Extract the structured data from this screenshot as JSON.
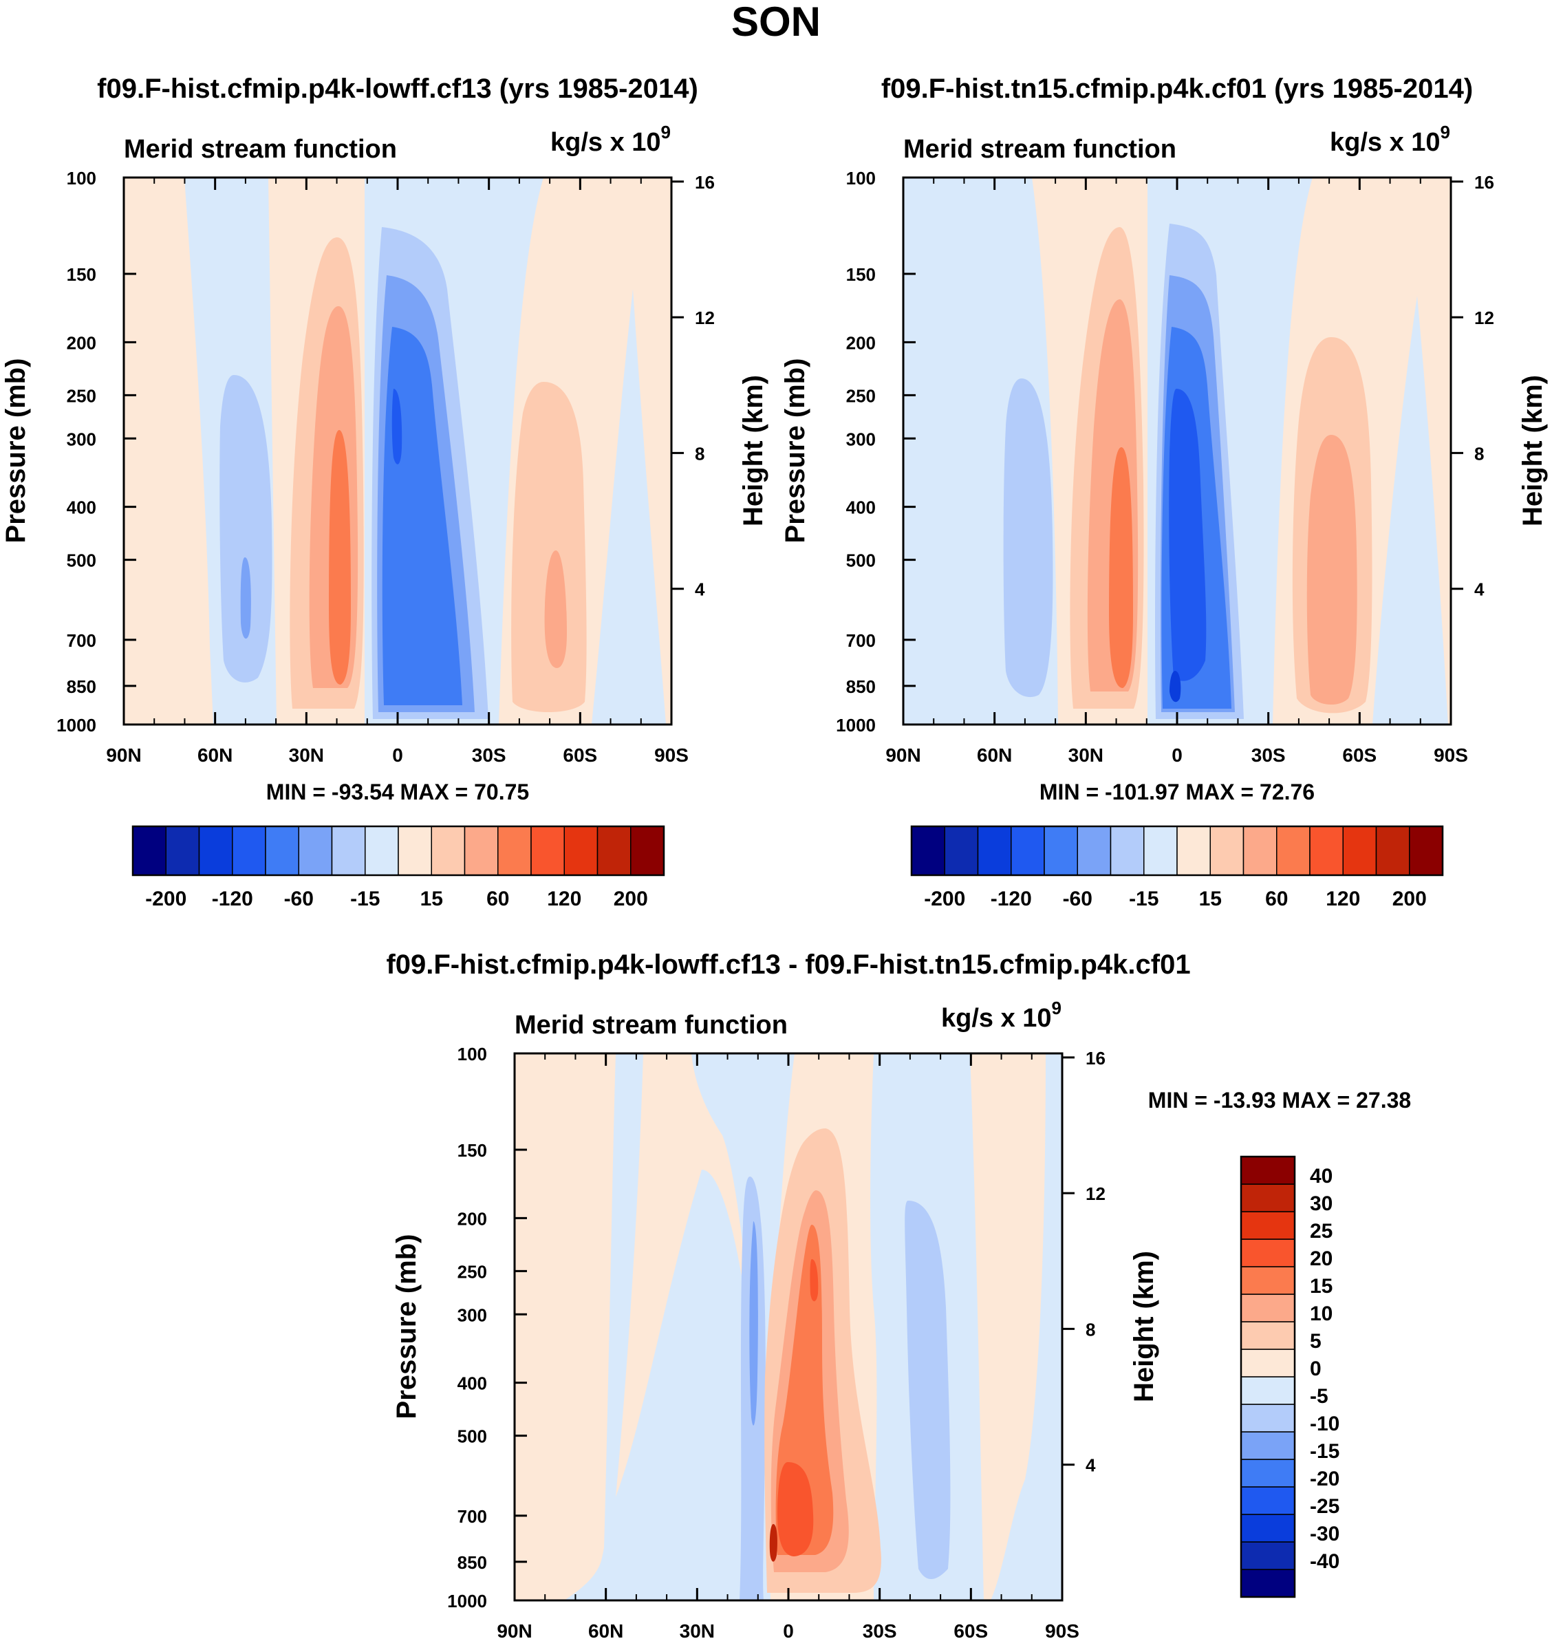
{
  "figure": {
    "title": "SON"
  },
  "colors": {
    "panel_scale": [
      "#000080",
      "#0d2bb0",
      "#0a3ddc",
      "#1f59f0",
      "#3f7cf5",
      "#7aa3f7",
      "#b3ccfa",
      "#d8e9fb",
      "#fde8d7",
      "#fdcbb0",
      "#fca98a",
      "#fb7b4e",
      "#f9552d",
      "#e53510",
      "#c02408",
      "#8b0000"
    ],
    "diff_scale": [
      "#000080",
      "#0d2bb0",
      "#0a3ddc",
      "#1f59f0",
      "#3f7cf5",
      "#7aa3f7",
      "#b3ccfa",
      "#d8e9fb",
      "#fde8d7",
      "#fdcbb0",
      "#fca98a",
      "#fb7b4e",
      "#f9552d",
      "#e53510",
      "#c02408",
      "#8b0000"
    ]
  },
  "axes": {
    "left_label": "Pressure (mb)",
    "right_label": "Height (km)",
    "pressure_ticks": [
      "100",
      "150",
      "200",
      "250",
      "300",
      "400",
      "500",
      "700",
      "850",
      "1000"
    ],
    "height_ticks": [
      "16",
      "12",
      "8",
      "4"
    ],
    "lat_ticks": [
      "90N",
      "60N",
      "30N",
      "0",
      "30S",
      "60S",
      "90S"
    ]
  },
  "panels": [
    {
      "title": "f09.F-hist.cfmip.p4k-lowff.cf13 (yrs 1985-2014)",
      "left_string": "Merid stream function",
      "right_string": "kg/s x 10",
      "right_sup": "9",
      "stats": "MIN = -93.54  MAX =  70.75"
    },
    {
      "title": "f09.F-hist.tn15.cfmip.p4k.cf01 (yrs 1985-2014)",
      "left_string": "Merid stream function",
      "right_string": "kg/s x 10",
      "right_sup": "9",
      "stats": "MIN = -101.97  MAX =  72.76"
    },
    {
      "title": "f09.F-hist.cfmip.p4k-lowff.cf13 - f09.F-hist.tn15.cfmip.p4k.cf01",
      "left_string": "Merid stream function",
      "right_string": "kg/s x 10",
      "right_sup": "9",
      "stats": "MIN = -13.93  MAX =  27.38"
    }
  ],
  "colorbars": {
    "panel_labels": [
      "-200",
      "-120",
      "-60",
      "-15",
      "15",
      "60",
      "120",
      "200"
    ],
    "diff_labels": [
      "40",
      "30",
      "25",
      "20",
      "15",
      "10",
      "5",
      "0",
      "-5",
      "-10",
      "-15",
      "-20",
      "-25",
      "-30",
      "-40"
    ]
  },
  "chart_data": [
    {
      "type": "heatmap",
      "title": "f09.F-hist.cfmip.p4k-lowff.cf13 (yrs 1985-2014)",
      "xlabel": "",
      "ylabel": "Pressure (mb)",
      "ylabel_right": "Height (km)",
      "x_range": [
        90,
        -90
      ],
      "y_range_mb": [
        1000,
        100
      ],
      "y_scale": "log",
      "min": -93.54,
      "max": 70.75,
      "levels": [
        -200,
        -160,
        -120,
        -80,
        -60,
        -40,
        -15,
        0,
        15,
        40,
        60,
        80,
        120,
        160,
        200
      ],
      "features": [
        {
          "cell": "negative",
          "center_lat": 0,
          "min_value": -93.54
        },
        {
          "cell": "positive",
          "center_lat": 17,
          "max_value": 70.75
        },
        {
          "cell": "positive",
          "center_lat": -52
        },
        {
          "cell": "negative",
          "center_lat": 50
        }
      ]
    },
    {
      "type": "heatmap",
      "title": "f09.F-hist.tn15.cfmip.p4k.cf01 (yrs 1985-2014)",
      "xlabel": "",
      "ylabel": "Pressure (mb)",
      "ylabel_right": "Height (km)",
      "x_range": [
        90,
        -90
      ],
      "y_range_mb": [
        1000,
        100
      ],
      "y_scale": "log",
      "min": -101.97,
      "max": 72.76,
      "levels": [
        -200,
        -160,
        -120,
        -80,
        -60,
        -40,
        -15,
        0,
        15,
        40,
        60,
        80,
        120,
        160,
        200
      ],
      "features": [
        {
          "cell": "negative",
          "center_lat": 2,
          "min_value": -101.97
        },
        {
          "cell": "positive",
          "center_lat": 17,
          "max_value": 72.76
        },
        {
          "cell": "positive",
          "center_lat": -52
        },
        {
          "cell": "negative",
          "center_lat": 50
        }
      ]
    },
    {
      "type": "heatmap",
      "title": "f09.F-hist.cfmip.p4k-lowff.cf13 - f09.F-hist.tn15.cfmip.p4k.cf01",
      "xlabel": "",
      "ylabel": "Pressure (mb)",
      "ylabel_right": "Height (km)",
      "x_range": [
        90,
        -90
      ],
      "y_range_mb": [
        1000,
        100
      ],
      "y_scale": "log",
      "min": -13.93,
      "max": 27.38,
      "levels": [
        -40,
        -30,
        -25,
        -20,
        -15,
        -10,
        -5,
        0,
        5,
        10,
        15,
        20,
        25,
        30,
        40
      ],
      "features": [
        {
          "cell": "positive",
          "center_lat": -2,
          "max_value": 27.38
        },
        {
          "cell": "negative",
          "center_lat": 10,
          "min_value": -13.93
        },
        {
          "cell": "negative",
          "center_lat": -47
        }
      ]
    }
  ]
}
